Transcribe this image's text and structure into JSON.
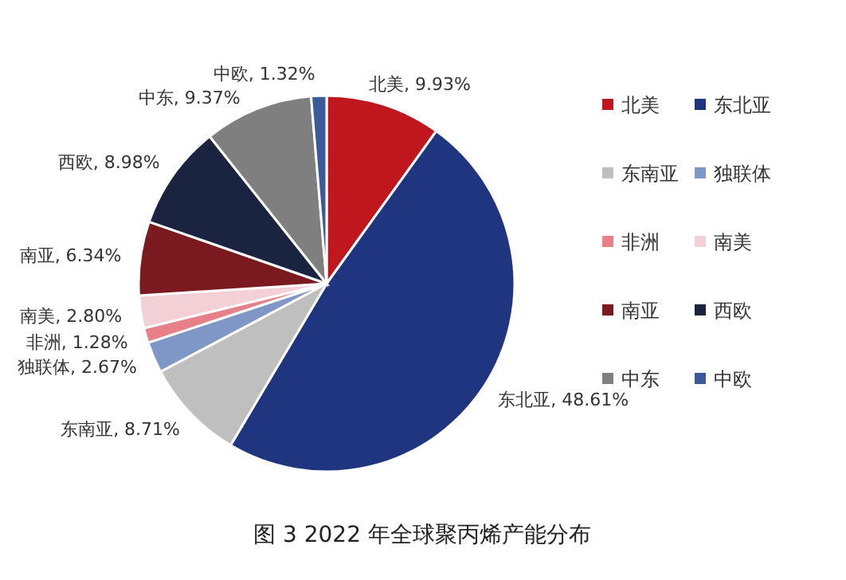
{
  "chart_data": {
    "type": "pie",
    "title": "图 3  2022 年全球聚丙烯产能分布",
    "categories": [
      "北美",
      "东北亚",
      "东南亚",
      "独联体",
      "非洲",
      "南美",
      "南亚",
      "西欧",
      "中东",
      "中欧"
    ],
    "values": [
      9.93,
      48.61,
      8.71,
      2.67,
      1.28,
      2.8,
      6.34,
      8.98,
      9.37,
      1.32
    ],
    "colors": [
      "#c0161e",
      "#1f3580",
      "#bfbfbf",
      "#7f97c7",
      "#e8808a",
      "#f2d0d5",
      "#7a1a1e",
      "#1a2440",
      "#7f7f7f",
      "#3a5a9a"
    ],
    "value_labels": [
      "北美, 9.93%",
      "东北亚, 48.61%",
      "东南亚, 8.71%",
      "独联体, 2.67%",
      "非洲, 1.28%",
      "南美, 2.80%",
      "南亚, 6.34%",
      "西欧, 8.98%",
      "中东, 9.37%",
      "中欧, 1.32%"
    ],
    "legend": "right"
  }
}
